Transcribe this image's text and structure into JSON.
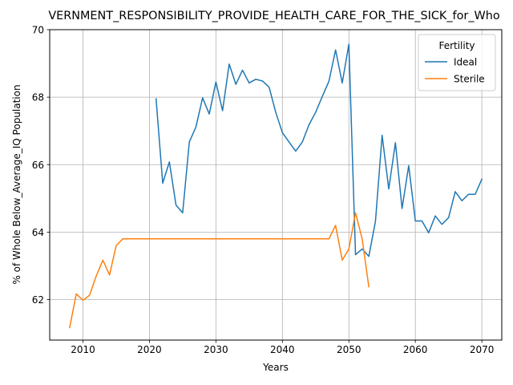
{
  "chart_data": {
    "type": "line",
    "title": "VERNMENT_RESPONSIBILITY_PROVIDE_HEALTH_CARE_FOR_THE_SICK_for_Who",
    "xlabel": "Years",
    "ylabel": "% of Whole Below_Average_IQ Population",
    "xlim": [
      2005,
      2073
    ],
    "ylim": [
      60.8,
      70.0
    ],
    "x_ticks": [
      2010,
      2020,
      2030,
      2040,
      2050,
      2060,
      2070
    ],
    "y_ticks": [
      62,
      64,
      66,
      68,
      70
    ],
    "grid": true,
    "legend": {
      "title": "Fertility",
      "position": "top-right"
    },
    "series": [
      {
        "name": "Ideal",
        "color": "#1f77b4",
        "x": [
          2021,
          2022,
          2023,
          2024,
          2025,
          2026,
          2027,
          2028,
          2029,
          2030,
          2031,
          2032,
          2033,
          2034,
          2035,
          2036,
          2037,
          2038,
          2039,
          2040,
          2041,
          2042,
          2043,
          2044,
          2045,
          2046,
          2047,
          2048,
          2049,
          2050,
          2051,
          2052,
          2053,
          2054,
          2055,
          2056,
          2057,
          2058,
          2059,
          2060,
          2061,
          2062,
          2063,
          2064,
          2065,
          2066,
          2067,
          2068,
          2069,
          2070
        ],
        "y": [
          67.95,
          65.45,
          66.08,
          64.8,
          64.57,
          66.67,
          67.12,
          67.98,
          67.5,
          68.45,
          67.6,
          68.98,
          68.38,
          68.8,
          68.42,
          68.53,
          68.48,
          68.3,
          67.55,
          66.95,
          66.67,
          66.4,
          66.67,
          67.18,
          67.55,
          68.02,
          68.47,
          69.4,
          68.42,
          69.57,
          63.33,
          63.5,
          63.28,
          64.32,
          66.87,
          65.28,
          66.65,
          64.7,
          65.97,
          64.33,
          64.33,
          63.98,
          64.48,
          64.23,
          64.43,
          65.2,
          64.93,
          65.12,
          65.12,
          65.57
        ]
      },
      {
        "name": "Sterile",
        "color": "#ff7f0e",
        "x": [
          2008,
          2009,
          2010,
          2011,
          2012,
          2013,
          2014,
          2015,
          2016,
          2017,
          2018,
          2019,
          2020,
          2021,
          2022,
          2023,
          2024,
          2025,
          2026,
          2027,
          2028,
          2029,
          2030,
          2031,
          2032,
          2033,
          2034,
          2035,
          2036,
          2037,
          2038,
          2039,
          2040,
          2041,
          2042,
          2043,
          2044,
          2045,
          2046,
          2047,
          2048,
          2049,
          2050,
          2051,
          2052,
          2053
        ],
        "y": [
          61.17,
          62.17,
          61.98,
          62.13,
          62.7,
          63.17,
          62.73,
          63.6,
          63.8,
          63.8,
          63.8,
          63.8,
          63.8,
          63.8,
          63.8,
          63.8,
          63.8,
          63.8,
          63.8,
          63.8,
          63.8,
          63.8,
          63.8,
          63.8,
          63.8,
          63.8,
          63.8,
          63.8,
          63.8,
          63.8,
          63.8,
          63.8,
          63.8,
          63.8,
          63.8,
          63.8,
          63.8,
          63.8,
          63.8,
          63.8,
          64.2,
          63.17,
          63.5,
          64.57,
          63.8,
          62.38
        ]
      }
    ]
  }
}
